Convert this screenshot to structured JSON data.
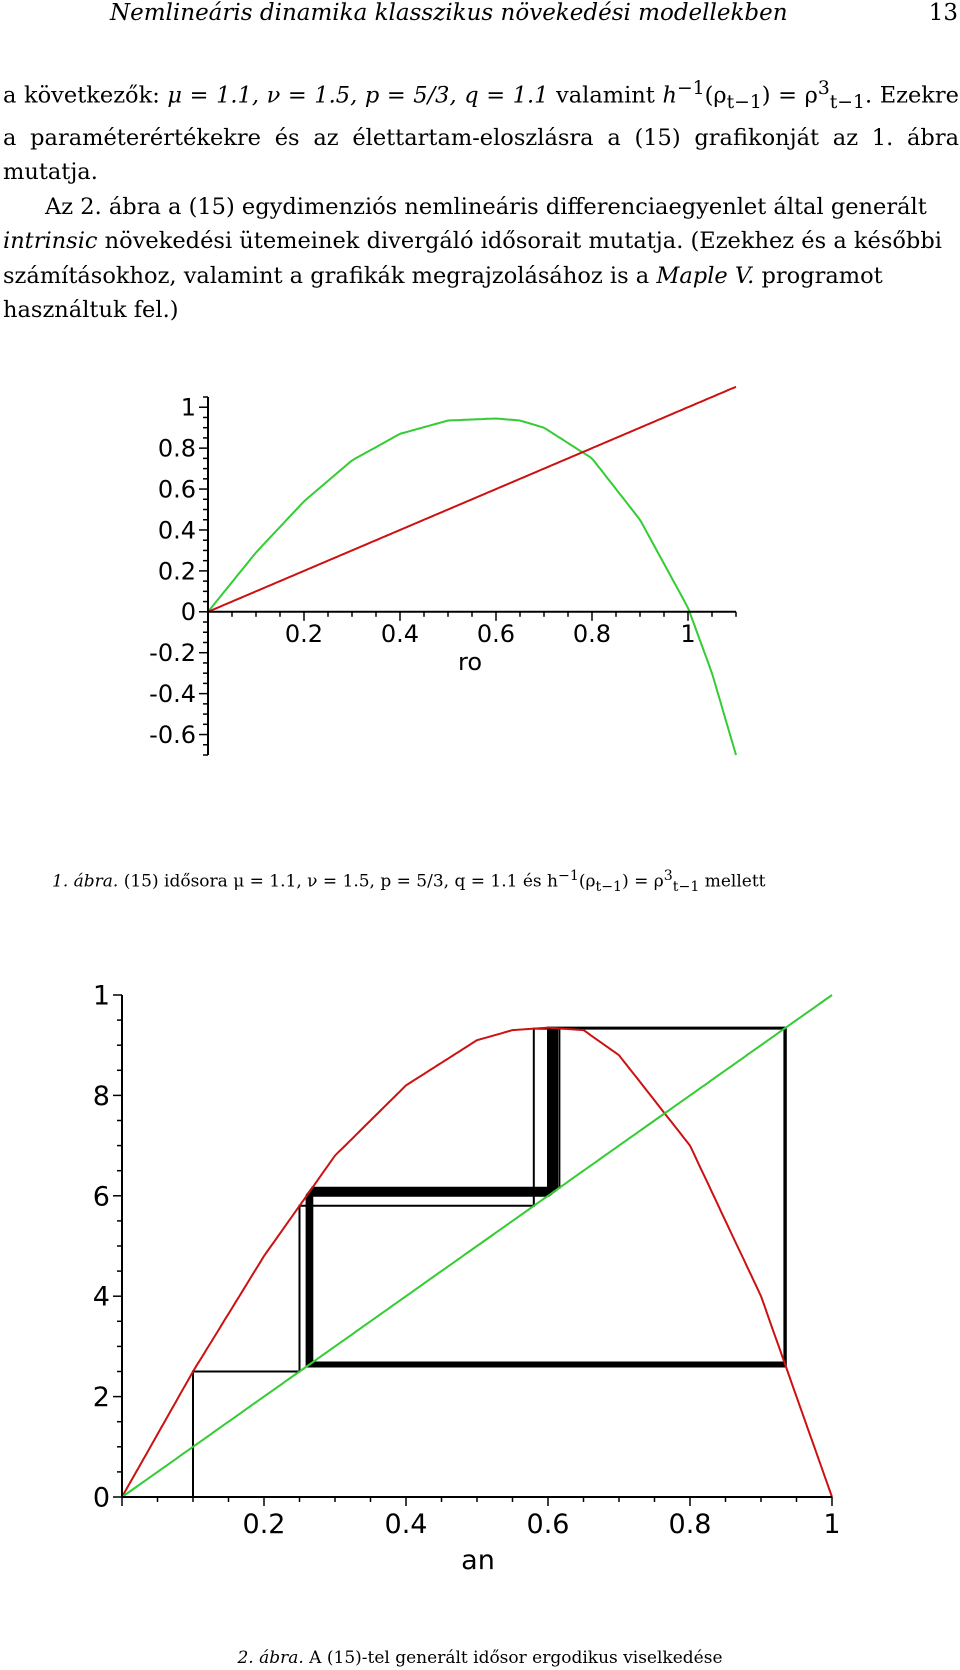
{
  "header": {
    "running_title": "Nemlineáris dinamika klasszikus növekedési modellekben",
    "page_number": "13"
  },
  "body": {
    "p1_start": "a következők: ",
    "p1_params": "μ = 1.1, ν = 1.5, p = 5/3, q = 1.1",
    "p1_mid": " valamint ",
    "p1_func": "h",
    "p1_func_sup": "−1",
    "p1_func_arg": "(ρ",
    "p1_func_arg_sub": "t−1",
    "p1_func_eq": ") = ρ",
    "p1_rho_sup": "3",
    "p1_rho_sub": "t−1",
    "p1_end": ". Ezekre a paraméterértékekre és az élettartam-eloszlásra a (15) grafikonját az 1. ábra mutatja.",
    "p2_start": "Az 2. ábra a (15) egydimenziós nemlineáris differenciaegyenlet által generált ",
    "p2_italic": "intrinsic",
    "p2_mid": " növekedési ütemeinek divergáló idősorait mutatja. (Ezekhez és a későbbi számításokhoz, valamint a grafikák megrajzolásához is a ",
    "p2_software": "Maple V.",
    "p2_end": " programot használtuk fel.)"
  },
  "figure1": {
    "caption_label": "1. ábra.",
    "caption_text": " (15) idősora μ = 1.1, ν = 1.5, p = 5/3, q = 1.1 és h",
    "caption_sup": "−1",
    "caption_arg": "(ρ",
    "caption_arg_sub": "t−1",
    "caption_eq": ") = ρ",
    "caption_rho_sup": "3",
    "caption_rho_sub": "t−1",
    "caption_end": " mellett"
  },
  "figure2": {
    "caption_label": "2. ábra.",
    "caption_text": " A (15)-tel generált idősor ergodikus viselkedése"
  },
  "colors": {
    "map_curve_fig1": "#33cc33",
    "diagonal_fig1": "#cc1111",
    "map_curve_fig2": "#cc1111",
    "diagonal_fig2": "#33cc33",
    "cobweb": "#000000"
  },
  "chart_data": [
    {
      "type": "line",
      "title": "",
      "xlabel": "ro",
      "ylabel": "",
      "xlim": [
        0,
        1.1
      ],
      "ylim": [
        -0.7,
        1.05
      ],
      "x_ticks": [
        "0.2",
        "0.4",
        "0.6",
        "0.8",
        "1"
      ],
      "y_ticks": [
        "1",
        "0.8",
        "0.6",
        "0.4",
        "0.2",
        "0",
        "-0.2",
        "-0.4",
        "-0.6"
      ],
      "series": [
        {
          "color": "#33cc33",
          "x": [
            0,
            0.1,
            0.2,
            0.3,
            0.4,
            0.5,
            0.6,
            0.65,
            0.7,
            0.8,
            0.9,
            1.0,
            1.05,
            1.1
          ],
          "y": [
            0,
            0.29,
            0.54,
            0.74,
            0.87,
            0.935,
            0.945,
            0.935,
            0.9,
            0.75,
            0.45,
            0.02,
            -0.3,
            -0.7
          ]
        },
        {
          "color": "#cc1111",
          "x": [
            0,
            1.1
          ],
          "y": [
            0,
            1.1
          ]
        }
      ]
    },
    {
      "type": "line",
      "title": "",
      "xlabel": "an",
      "ylabel": "",
      "xlim": [
        0,
        1
      ],
      "ylim": [
        0,
        1
      ],
      "x_ticks": [
        "0.2",
        "0.4",
        "0.6",
        "0.8",
        "1"
      ],
      "y_ticks": [
        "1",
        "0.8",
        "0.6",
        "0.4",
        "0.2",
        "0"
      ],
      "series": [
        {
          "color": "#cc1111",
          "x": [
            0,
            0.1,
            0.2,
            0.3,
            0.4,
            0.5,
            0.55,
            0.6,
            0.65,
            0.7,
            0.8,
            0.9,
            1.0
          ],
          "y": [
            0,
            0.25,
            0.48,
            0.68,
            0.82,
            0.91,
            0.93,
            0.935,
            0.93,
            0.88,
            0.7,
            0.4,
            0
          ]
        },
        {
          "color": "#33cc33",
          "x": [
            0,
            1
          ],
          "y": [
            0,
            1
          ]
        }
      ],
      "cobweb_start": 0.1
    }
  ]
}
